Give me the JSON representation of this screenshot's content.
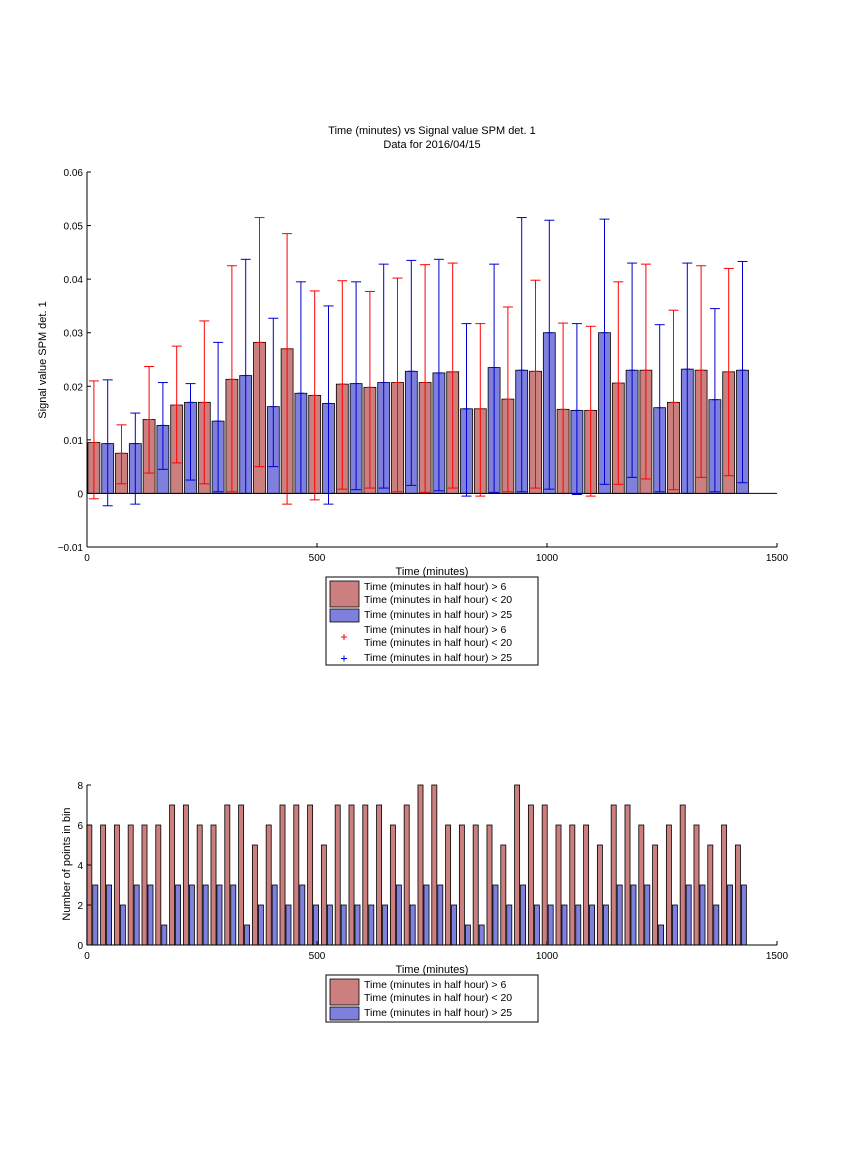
{
  "figure": {
    "top_title_line1": "Time (minutes) vs Signal value SPM det. 1",
    "top_title_line2": "Data for 2016/04/15"
  },
  "colors": {
    "red_fill": "#cc7f7f",
    "blue_fill": "#7f7fdd",
    "red_err": "#ff0000",
    "blue_err": "#0000cc",
    "axis": "#000000"
  },
  "legend_top": {
    "items": [
      {
        "kind": "patch",
        "color": "red",
        "lines": [
          "Time (minutes in half hour) > 6",
          "Time (minutes in half hour) < 20"
        ]
      },
      {
        "kind": "patch",
        "color": "blue",
        "lines": [
          "Time (minutes in half hour) > 25"
        ]
      },
      {
        "kind": "marker",
        "color": "red",
        "marker": "+",
        "lines": [
          "Time (minutes in half hour) > 6",
          "Time (minutes in half hour) < 20"
        ]
      },
      {
        "kind": "marker",
        "color": "blue",
        "marker": "+",
        "lines": [
          "Time (minutes in half hour) > 25"
        ]
      }
    ]
  },
  "legend_bottom": {
    "items": [
      {
        "kind": "patch",
        "color": "red",
        "lines": [
          "Time (minutes in half hour) > 6",
          "Time (minutes in half hour) < 20"
        ]
      },
      {
        "kind": "patch",
        "color": "blue",
        "lines": [
          "Time (minutes in half hour) > 25"
        ]
      }
    ]
  },
  "chart_data": [
    {
      "type": "bar",
      "title": "Time (minutes) vs Signal value SPM det. 1",
      "subtitle": "Data for 2016/04/15",
      "xlabel": "Time (minutes)",
      "ylabel": "Signal value SPM det. 1",
      "xlim": [
        0,
        1500
      ],
      "ylim": [
        -0.01,
        0.06
      ],
      "xticks": [
        0,
        500,
        1000,
        1500
      ],
      "xtick_labels": [
        "0",
        "500",
        "1000",
        "1500"
      ],
      "yticks": [
        -0.01,
        0,
        0.01,
        0.02,
        0.03,
        0.04,
        0.05,
        0.06
      ],
      "ytick_labels": [
        "−0.01",
        "0",
        "0.01",
        "0.02",
        "0.03",
        "0.04",
        "0.05",
        "0.06"
      ],
      "bar_width": 26,
      "grid": false,
      "legend_position": "bottom-center",
      "series": [
        {
          "color": "red",
          "x": [
            15,
            75,
            135,
            195,
            255,
            315,
            375,
            435,
            495,
            555,
            615,
            675,
            735,
            795,
            855,
            915,
            975,
            1035,
            1095,
            1155,
            1215,
            1275,
            1335,
            1395
          ],
          "values": [
            0.0095,
            0.0075,
            0.0138,
            0.0165,
            0.017,
            0.0213,
            0.0282,
            0.027,
            0.0183,
            0.0204,
            0.0198,
            0.0207,
            0.0207,
            0.0227,
            0.0158,
            0.0176,
            0.0228,
            0.0157,
            0.0155,
            0.0206,
            0.023,
            0.017,
            0.023,
            0.0227
          ],
          "err_upper": [
            0.021,
            0.0128,
            0.0237,
            0.0275,
            0.0322,
            0.0425,
            0.0515,
            0.0485,
            0.0378,
            0.0397,
            0.0377,
            0.0402,
            0.0427,
            0.043,
            0.0317,
            0.0348,
            0.0398,
            0.0318,
            0.0312,
            0.0395,
            0.0428,
            0.0342,
            0.0425,
            0.042
          ],
          "err_lower": [
            -0.001,
            0.0018,
            0.0038,
            0.0057,
            0.0018,
            0.0003,
            0.005,
            -0.002,
            -0.0012,
            0.0008,
            0.001,
            0.0003,
            0.0002,
            0.001,
            -0.0005,
            0.0003,
            0.001,
            0.0,
            -0.0005,
            0.0017,
            0.0027,
            0.0007,
            0.003,
            0.0033
          ]
        },
        {
          "color": "blue",
          "x": [
            45,
            105,
            165,
            225,
            285,
            345,
            405,
            465,
            525,
            585,
            645,
            705,
            765,
            825,
            885,
            945,
            1005,
            1065,
            1125,
            1185,
            1245,
            1305,
            1365,
            1425
          ],
          "values": [
            0.0093,
            0.0093,
            0.0127,
            0.017,
            0.0135,
            0.022,
            0.0162,
            0.0187,
            0.0168,
            0.0205,
            0.0207,
            0.0228,
            0.0225,
            0.0158,
            0.0235,
            0.023,
            0.03,
            0.0155,
            0.03,
            0.023,
            0.016,
            0.0232,
            0.0175,
            0.023
          ],
          "err_upper": [
            0.0212,
            0.015,
            0.0207,
            0.0205,
            0.0282,
            0.0437,
            0.0327,
            0.0395,
            0.035,
            0.0395,
            0.0428,
            0.0435,
            0.0437,
            0.0317,
            0.0428,
            0.0515,
            0.051,
            0.0317,
            0.0512,
            0.043,
            0.0315,
            0.043,
            0.0345,
            0.0433
          ],
          "err_lower": [
            -0.0023,
            -0.002,
            0.0045,
            0.0025,
            0.0003,
            0.0,
            0.005,
            0.0,
            -0.002,
            0.0007,
            0.001,
            0.0015,
            0.0005,
            -0.0005,
            0.0002,
            0.0003,
            0.0008,
            -0.0002,
            0.0017,
            0.003,
            0.0003,
            0.0,
            0.0003,
            0.002
          ]
        }
      ]
    },
    {
      "type": "bar",
      "xlabel": "Time (minutes)",
      "ylabel": "Number of points in bin",
      "xlim": [
        0,
        1500
      ],
      "ylim": [
        0,
        8
      ],
      "xticks": [
        0,
        500,
        1000,
        1500
      ],
      "xtick_labels": [
        "0",
        "500",
        "1000",
        "1500"
      ],
      "yticks": [
        0,
        2,
        4,
        6,
        8
      ],
      "ytick_labels": [
        "0",
        "2",
        "4",
        "6",
        "8"
      ],
      "bar_width": 11,
      "grid": false,
      "legend_position": "bottom-center",
      "series": [
        {
          "color": "red",
          "x": [
            5,
            35,
            65,
            95,
            125,
            155,
            185,
            215,
            245,
            275,
            305,
            335,
            365,
            395,
            425,
            455,
            485,
            515,
            545,
            575,
            605,
            635,
            665,
            695,
            725,
            755,
            785,
            815,
            845,
            875,
            905,
            935,
            965,
            995,
            1025,
            1055,
            1085,
            1115,
            1145,
            1175,
            1205,
            1235,
            1265,
            1295,
            1325,
            1355,
            1385,
            1415
          ],
          "values": [
            6,
            6,
            6,
            6,
            6,
            6,
            7,
            7,
            6,
            6,
            7,
            7,
            5,
            6,
            7,
            7,
            7,
            5,
            7,
            7,
            7,
            7,
            6,
            7,
            8,
            8,
            6,
            6,
            6,
            6,
            5,
            8,
            7,
            7,
            6,
            6,
            6,
            5,
            7,
            7,
            6,
            5,
            6,
            7,
            6,
            5,
            6,
            5
          ]
        },
        {
          "color": "blue",
          "x": [
            18,
            48,
            78,
            108,
            138,
            168,
            198,
            228,
            258,
            288,
            318,
            348,
            378,
            408,
            438,
            468,
            498,
            528,
            558,
            588,
            618,
            648,
            678,
            708,
            738,
            768,
            798,
            828,
            858,
            888,
            918,
            948,
            978,
            1008,
            1038,
            1068,
            1098,
            1128,
            1158,
            1188,
            1218,
            1248,
            1278,
            1308,
            1338,
            1368,
            1398,
            1428
          ],
          "values": [
            3,
            3,
            2,
            3,
            3,
            1,
            3,
            3,
            3,
            3,
            3,
            1,
            2,
            3,
            2,
            3,
            2,
            2,
            2,
            2,
            2,
            2,
            3,
            2,
            3,
            3,
            2,
            1,
            1,
            3,
            2,
            3,
            2,
            2,
            2,
            2,
            2,
            2,
            3,
            3,
            3,
            1,
            2,
            3,
            3,
            2,
            3,
            3
          ]
        }
      ]
    }
  ]
}
